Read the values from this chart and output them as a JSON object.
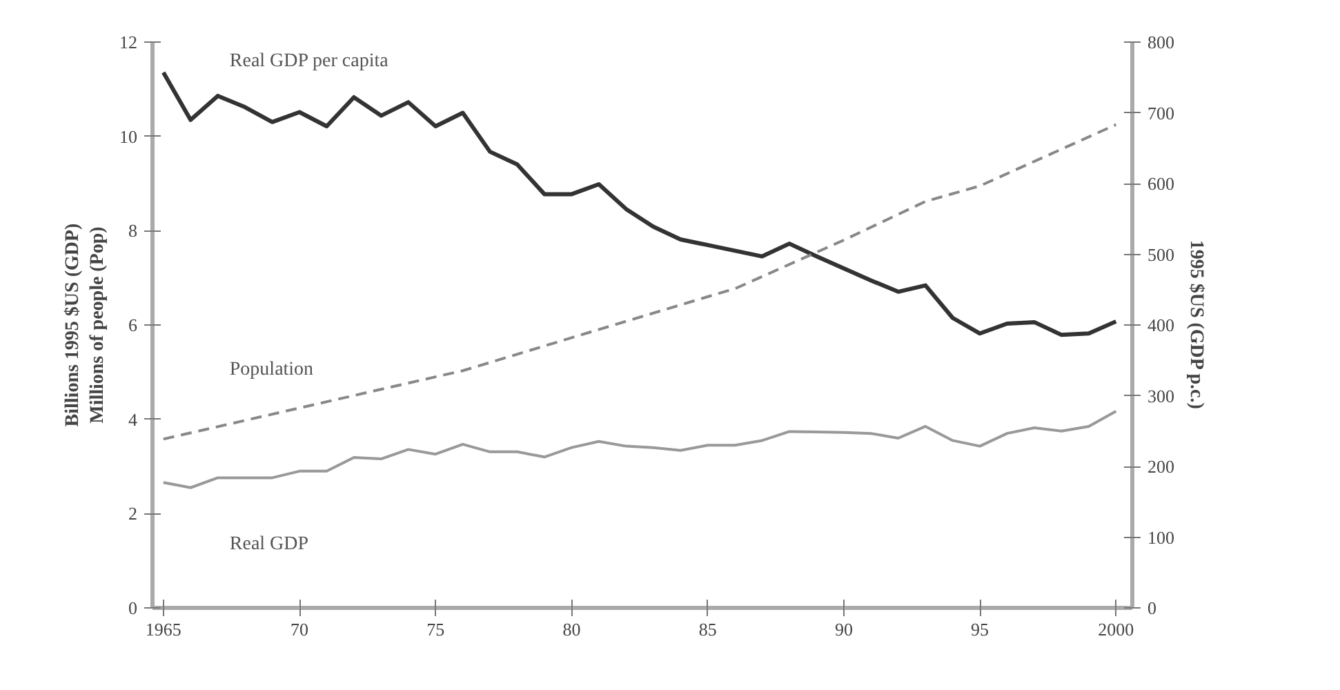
{
  "chart_data": {
    "type": "line",
    "ylabel": "Billions 1995 $US (GDP)\nMillions of people (Pop)",
    "y2label": "1995 $US (GDP p.c.)",
    "x": [
      1965,
      1966,
      1967,
      1968,
      1969,
      1970,
      1971,
      1972,
      1973,
      1974,
      1975,
      1976,
      1977,
      1978,
      1979,
      1980,
      1981,
      1982,
      1983,
      1984,
      1985,
      1986,
      1987,
      1988,
      1989,
      1990,
      1991,
      1992,
      1993,
      1994,
      1995,
      1996,
      1997,
      1998,
      1999,
      2000
    ],
    "series": [
      {
        "name": "Real GDP per capita",
        "color": "#333333",
        "axis": "y2",
        "line_style": "solid",
        "values": [
          757,
          690,
          724,
          708,
          687,
          701,
          681,
          722,
          696,
          715,
          681,
          700,
          645,
          627,
          585,
          585,
          599,
          564,
          539,
          521,
          513,
          505,
          497,
          515,
          497,
          480,
          463,
          447,
          456,
          410,
          388,
          402,
          404,
          386,
          388,
          405
        ]
      },
      {
        "name": "Population",
        "color": "#888888",
        "line_style": "dashed",
        "x": [
          1965,
          1970,
          1975,
          1976,
          1980,
          1985,
          1986,
          1990,
          1993,
          1995,
          2000
        ],
        "values": [
          3.58,
          4.24,
          4.9,
          5.03,
          5.73,
          6.6,
          6.77,
          7.8,
          8.62,
          8.95,
          10.25
        ]
      },
      {
        "name": "Real GDP",
        "color": "#999999",
        "line_style": "solid",
        "values": [
          2.66,
          2.55,
          2.76,
          2.76,
          2.76,
          2.9,
          2.9,
          3.19,
          3.16,
          3.36,
          3.26,
          3.47,
          3.31,
          3.31,
          3.2,
          3.4,
          3.53,
          3.43,
          3.4,
          3.34,
          3.45,
          3.45,
          3.55,
          3.74,
          3.73,
          3.72,
          3.7,
          3.6,
          3.85,
          3.55,
          3.43,
          3.7,
          3.82,
          3.75,
          3.85,
          4.17
        ]
      }
    ],
    "xlim": [
      1964.6,
      2000.6
    ],
    "xticks": [
      {
        "value": 1965,
        "label": "1965"
      },
      {
        "value": 1970,
        "label": "70"
      },
      {
        "value": 1975,
        "label": "75"
      },
      {
        "value": 1980,
        "label": "80"
      },
      {
        "value": 1985,
        "label": "85"
      },
      {
        "value": 1990,
        "label": "90"
      },
      {
        "value": 1995,
        "label": "95"
      },
      {
        "value": 2000,
        "label": "2000"
      }
    ],
    "ylim": [
      0,
      12
    ],
    "yticks": [
      0,
      2,
      4,
      6,
      8,
      10,
      12
    ],
    "y2lim": [
      0,
      800
    ],
    "y2ticks": [
      0,
      100,
      200,
      300,
      400,
      500,
      600,
      700,
      800
    ],
    "grid": false
  }
}
